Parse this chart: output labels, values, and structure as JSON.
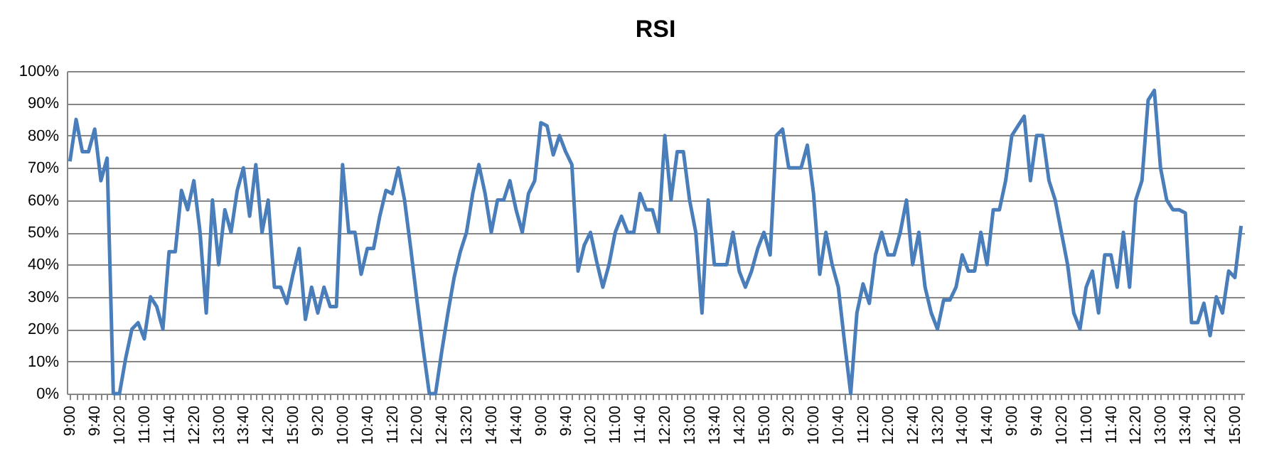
{
  "chart_data": {
    "type": "line",
    "title": "RSI",
    "categories": [
      "9:00",
      null,
      null,
      null,
      "9:40",
      null,
      null,
      null,
      "10:20",
      null,
      null,
      null,
      "11:00",
      null,
      null,
      null,
      "11:40",
      null,
      null,
      null,
      "12:20",
      null,
      null,
      null,
      "13:00",
      null,
      null,
      null,
      "13:40",
      null,
      null,
      null,
      "14:20",
      null,
      null,
      null,
      "15:00",
      null,
      null,
      null,
      "9:20",
      null,
      null,
      null,
      "10:00",
      null,
      null,
      null,
      "10:40",
      null,
      null,
      null,
      "11:20",
      null,
      null,
      null,
      "12:00",
      null,
      null,
      null,
      "12:40",
      null,
      null,
      null,
      "13:20",
      null,
      null,
      null,
      "14:00",
      null,
      null,
      null,
      "14:40",
      null,
      null,
      null,
      "9:00",
      null,
      null,
      null,
      "9:40",
      null,
      null,
      null,
      "10:20",
      null,
      null,
      null,
      "11:00",
      null,
      null,
      null,
      "11:40",
      null,
      null,
      null,
      "12:20",
      null,
      null,
      null,
      "13:00",
      null,
      null,
      null,
      "13:40",
      null,
      null,
      null,
      "14:20",
      null,
      null,
      null,
      "15:00",
      null,
      null,
      null,
      "9:20",
      null,
      null,
      null,
      "10:00",
      null,
      null,
      null,
      "10:40",
      null,
      null,
      null,
      "11:20",
      null,
      null,
      null,
      "12:00",
      null,
      null,
      null,
      "12:40",
      null,
      null,
      null,
      "13:20",
      null,
      null,
      null,
      "14:00",
      null,
      null,
      null,
      "14:40",
      null,
      null,
      null,
      "9:00",
      null,
      null,
      null,
      "9:40",
      null,
      null,
      null,
      "10:20",
      null,
      null,
      null,
      "11:00",
      null,
      null,
      null,
      "11:40",
      null,
      null,
      null,
      "12:20",
      null,
      null,
      null,
      "13:00",
      null,
      null,
      null,
      "13:40",
      null,
      null,
      null,
      "14:20",
      null,
      null,
      null,
      "15:00",
      null
    ],
    "series": [
      {
        "color": "#4a7ebb",
        "values": [
          72,
          85,
          75,
          75,
          82,
          66,
          73,
          0,
          0,
          11,
          20,
          22,
          17,
          30,
          27,
          20,
          44,
          44,
          63,
          57,
          66,
          50,
          25,
          60,
          40,
          57,
          50,
          63,
          70,
          55,
          71,
          50,
          60,
          33,
          33,
          28,
          37,
          45,
          23,
          33,
          25,
          33,
          27,
          27,
          71,
          50,
          50,
          37,
          45,
          45,
          55,
          63,
          62,
          70,
          60,
          45,
          29,
          14,
          0,
          0,
          13,
          25,
          36,
          44,
          50,
          62,
          71,
          62,
          50,
          60,
          60,
          66,
          57,
          50,
          62,
          66,
          84,
          83,
          74,
          80,
          75,
          71,
          38,
          46,
          50,
          41,
          33,
          40,
          50,
          55,
          50,
          50,
          62,
          57,
          57,
          50,
          80,
          60,
          75,
          75,
          60,
          50,
          25,
          60,
          40,
          40,
          40,
          50,
          38,
          33,
          38,
          45,
          50,
          43,
          80,
          82,
          70,
          70,
          70,
          77,
          62,
          37,
          50,
          40,
          33,
          16,
          0,
          25,
          34,
          28,
          43,
          50,
          43,
          43,
          50,
          60,
          40,
          50,
          33,
          25,
          20,
          29,
          29,
          33,
          43,
          38,
          38,
          50,
          40,
          57,
          57,
          66,
          80,
          83,
          86,
          66,
          80,
          80,
          66,
          60,
          50,
          40,
          25,
          20,
          33,
          38,
          25,
          43,
          43,
          33,
          50,
          33,
          60,
          66,
          91,
          94,
          70,
          60,
          57,
          57,
          56,
          22,
          22,
          28,
          18,
          30,
          25,
          38,
          36,
          52
        ]
      }
    ],
    "ylim": [
      0,
      100
    ],
    "yticks": [
      {
        "value": 0,
        "label": "0%"
      },
      {
        "value": 10,
        "label": "10%"
      },
      {
        "value": 20,
        "label": "20%"
      },
      {
        "value": 30,
        "label": "30%"
      },
      {
        "value": 40,
        "label": "40%"
      },
      {
        "value": 50,
        "label": "50%"
      },
      {
        "value": 60,
        "label": "60%"
      },
      {
        "value": 70,
        "label": "70%"
      },
      {
        "value": 80,
        "label": "80%"
      },
      {
        "value": 90,
        "label": "90%"
      },
      {
        "value": 100,
        "label": "100%"
      }
    ],
    "grid": "y",
    "marker": "none",
    "line_style": "solid"
  }
}
